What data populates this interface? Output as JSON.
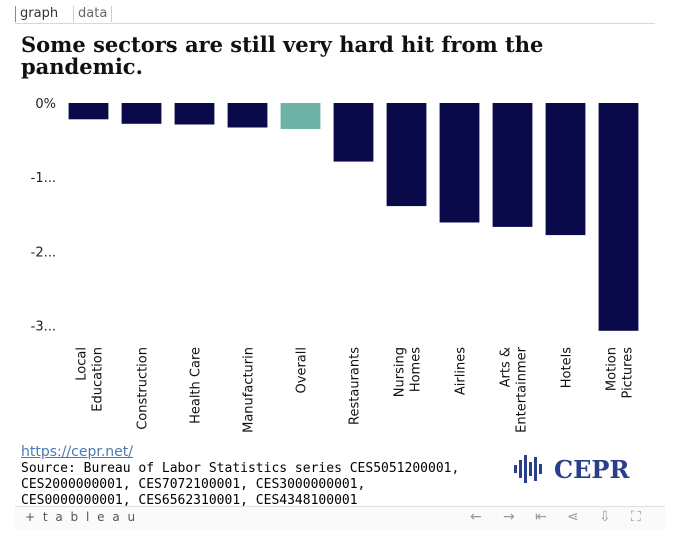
{
  "tabs": {
    "graph": "graph",
    "data": "data"
  },
  "title": "Some sectors are still very hard hit from the pandemic.",
  "chart_data": {
    "type": "bar",
    "categories": [
      [
        "Local",
        "Education"
      ],
      [
        "Construction"
      ],
      [
        "Health Care"
      ],
      [
        "Manufacturin"
      ],
      [
        "Overall"
      ],
      [
        "Restaurants"
      ],
      [
        "Nursing",
        "Homes"
      ],
      [
        "Airlines"
      ],
      [
        "Arts &",
        "Entertainmer"
      ],
      [
        "Hotels"
      ],
      [
        "Motion",
        "Pictures"
      ]
    ],
    "values": [
      -0.22,
      -0.28,
      -0.29,
      -0.33,
      -0.35,
      -0.79,
      -1.39,
      -1.61,
      -1.67,
      -1.78,
      -3.07
    ],
    "highlight_index": 4,
    "ylim": [
      -3.1,
      0.05
    ],
    "y_ticks": [
      0,
      -1,
      -2,
      -3
    ],
    "y_tick_labels": [
      "0%",
      "-1...",
      "-2...",
      "-3..."
    ],
    "colors": {
      "bar": "#0a0a4a",
      "highlight": "#6fb3a6"
    }
  },
  "footer_link": "https://cepr.net/",
  "source_text": "Source: Bureau of Labor Statistics series CES5051200001, CES2000000001, CES7072100001, CES3000000001, CES0000000001, CES6562310001, CES4348100001",
  "logo": {
    "text": "CEPR"
  },
  "toolbar": {
    "brand": "+ t a b l e a u",
    "icons": [
      "undo-icon",
      "redo-icon",
      "revert-icon",
      "share-icon",
      "download-icon",
      "fullscreen-icon"
    ]
  }
}
